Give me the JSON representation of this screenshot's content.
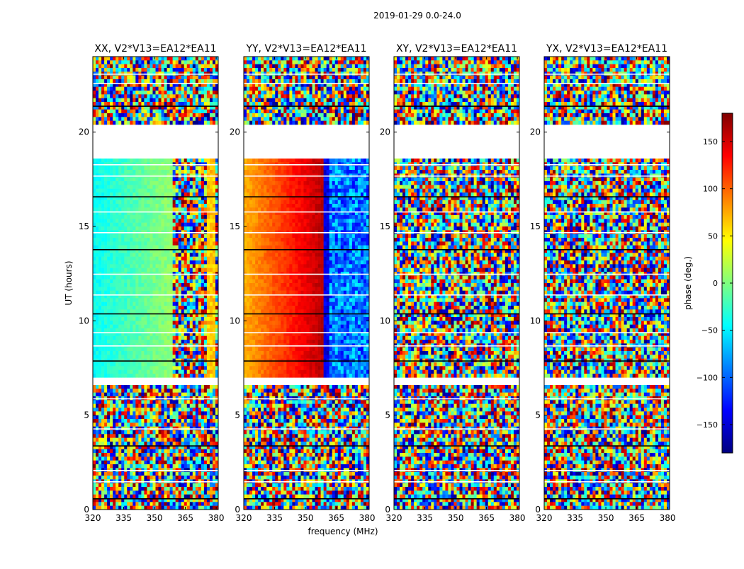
{
  "figure": {
    "suptitle": "2019-01-29 0.0-24.0",
    "xlabel": "frequency (MHz)",
    "ylabel": "UT (hours)"
  },
  "chart_data": {
    "type": "heatmap",
    "title": "2019-01-29 0.0-24.0",
    "xlabel": "frequency (MHz)",
    "ylabel": "UT (hours)",
    "xlim": [
      320,
      381
    ],
    "ylim": [
      0,
      24
    ],
    "x_ticks": [
      320,
      335,
      350,
      365,
      380
    ],
    "y_ticks": [
      0,
      5,
      10,
      15,
      20
    ],
    "panels": [
      {
        "title": "XX, V2*V13=EA12*EA11",
        "style": "xx"
      },
      {
        "title": "YY, V2*V13=EA12*EA11",
        "style": "yy"
      },
      {
        "title": "XY, V2*V13=EA12*EA11",
        "style": "noise"
      },
      {
        "title": "YX, V2*V13=EA12*EA11",
        "style": "noise"
      }
    ],
    "data_gaps_hours": [
      [
        18.6,
        20.3
      ],
      [
        6.6,
        6.9
      ]
    ],
    "colorbar": {
      "label": "phase (deg.)",
      "range": [
        -180,
        180
      ],
      "ticks": [
        150,
        100,
        50,
        0,
        -50,
        -100,
        -150
      ],
      "colormap": "jet"
    }
  },
  "colors": {
    "jet": [
      "#00007f",
      "#0000ff",
      "#007fff",
      "#00ffff",
      "#7fff7f",
      "#ffff00",
      "#ff7f00",
      "#ff0000",
      "#7f0000"
    ]
  }
}
